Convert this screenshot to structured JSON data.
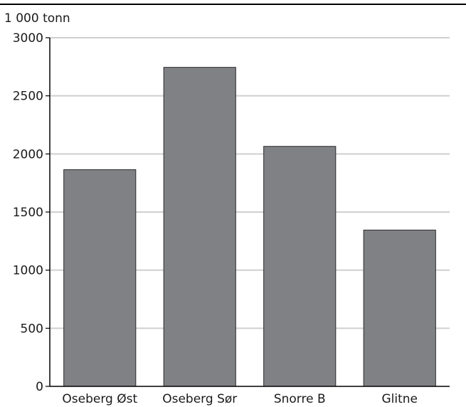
{
  "chart_data": {
    "type": "bar",
    "ylabel": "1 000 tonn",
    "categories": [
      "Oseberg Øst",
      "Oseberg Sør",
      "Snorre B",
      "Glitne"
    ],
    "values": [
      1865,
      2745,
      2065,
      1345
    ],
    "ylim": [
      0,
      3000
    ],
    "yticks": [
      0,
      500,
      1000,
      1500,
      2000,
      2500,
      3000
    ],
    "grid": true,
    "bar_color": "#808184",
    "bar_edge_color": "#2b2b2b",
    "grid_color": "#cfcfcf"
  }
}
